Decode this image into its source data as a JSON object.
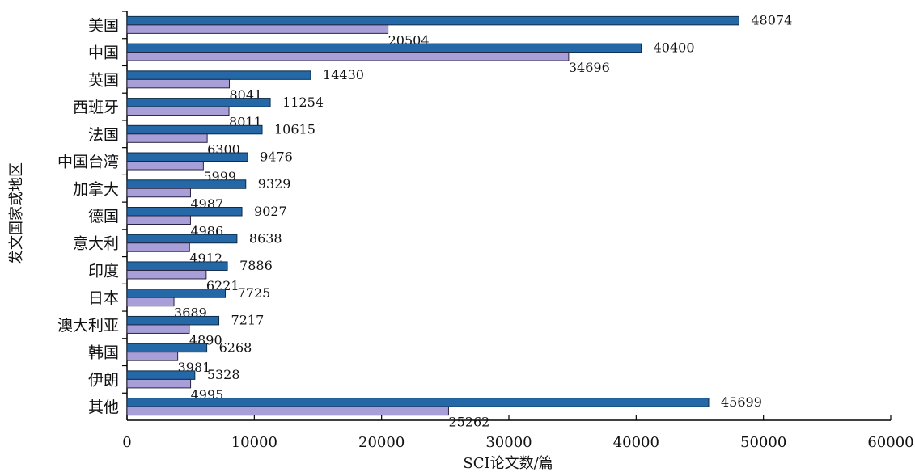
{
  "chart_data": {
    "type": "bar",
    "orientation": "horizontal",
    "title": "",
    "xlabel": "SCI论文数/篇",
    "ylabel": "发文国家或地区",
    "xlim": [
      0,
      60000
    ],
    "xticks": [
      "0",
      "10000",
      "20000",
      "30000",
      "40000",
      "50000",
      "60000"
    ],
    "categories": [
      "美国",
      "中国",
      "英国",
      "西班牙",
      "法国",
      "中国台湾",
      "加拿大",
      "德国",
      "意大利",
      "印度",
      "日本",
      "澳大利亚",
      "韩国",
      "伊朗",
      "其他"
    ],
    "series": [
      {
        "color": "#2468a8",
        "values": [
          48074,
          40400,
          14430,
          11254,
          10615,
          9476,
          9329,
          9027,
          8638,
          7886,
          7725,
          7217,
          6268,
          5328,
          45699
        ]
      },
      {
        "color": "#a89ed8",
        "values": [
          20504,
          34696,
          8041,
          8011,
          6300,
          5999,
          4987,
          4986,
          4912,
          6221,
          3689,
          4890,
          3981,
          4995,
          25262
        ]
      }
    ],
    "grid": false,
    "legend": "none"
  }
}
